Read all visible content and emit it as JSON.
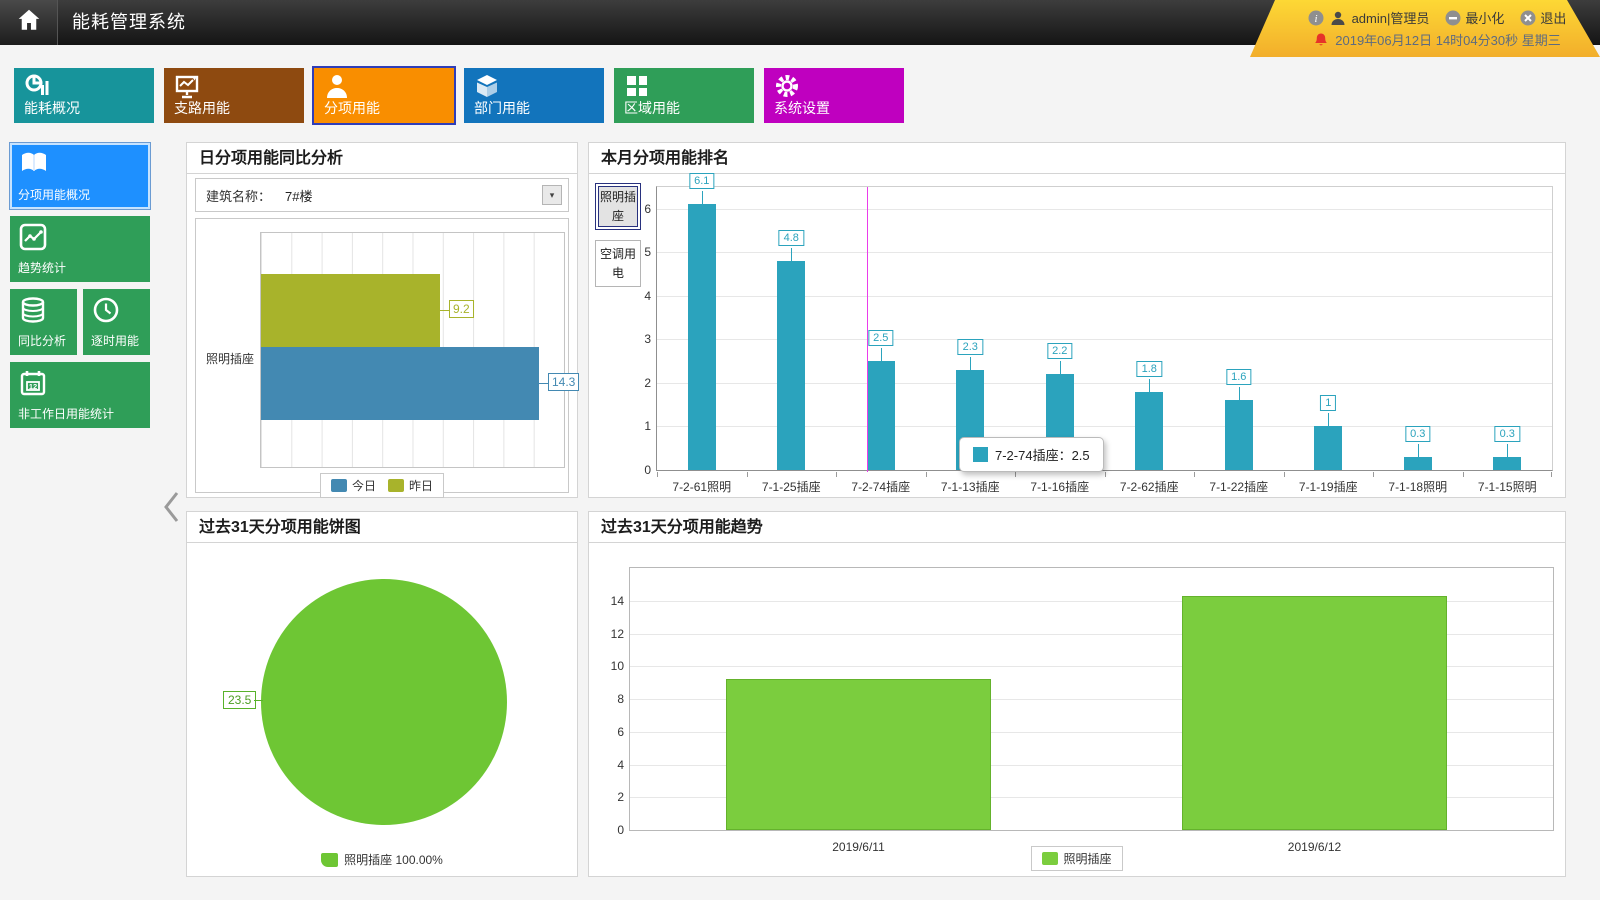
{
  "app": {
    "title": "能耗管理系统"
  },
  "header": {
    "user": "admin|管理员",
    "minimize_label": "最小化",
    "exit_label": "退出",
    "datetime": "2019年06月12日 14时04分30秒 星期三"
  },
  "icons": {
    "home": "home-icon",
    "info": "info-icon",
    "user": "user-icon",
    "minimize": "minimize-icon",
    "close": "close-icon",
    "bell": "bell-icon",
    "dropdown": "dropdown-arrow-icon",
    "collapse": "chevron-left-icon"
  },
  "nav": {
    "items": [
      {
        "label": "能耗概况",
        "icon": "energy-overview-icon",
        "color": "#17949b",
        "selected": false
      },
      {
        "label": "支路用能",
        "icon": "branch-energy-icon",
        "color": "#8e4a10",
        "selected": false
      },
      {
        "label": "分项用能",
        "icon": "category-energy-icon",
        "color": "#f98e00",
        "selected": true
      },
      {
        "label": "部门用能",
        "icon": "department-energy-icon",
        "color": "#1274bc",
        "selected": false
      },
      {
        "label": "区域用能",
        "icon": "area-energy-icon",
        "color": "#2f9e58",
        "selected": false
      },
      {
        "label": "系统设置",
        "icon": "system-settings-icon",
        "color": "#bf00bf",
        "selected": false
      }
    ]
  },
  "sidebar": {
    "items": [
      {
        "label": "分项用能概况",
        "icon": "overview-book-icon",
        "color": "#1e90ff",
        "selected": true
      },
      {
        "label": "趋势统计",
        "icon": "trend-chart-icon",
        "color": "#2f9e58",
        "selected": false
      },
      {
        "label": "同比分析",
        "icon": "database-icon",
        "color": "#2f9e58",
        "selected": false
      },
      {
        "label": "逐时用能",
        "icon": "clock-icon",
        "color": "#2f9e58",
        "selected": false
      },
      {
        "label": "非工作日用能统计",
        "icon": "calendar-icon",
        "color": "#2f9e58",
        "selected": false
      }
    ]
  },
  "panels": {
    "compare": {
      "title": "日分项用能同比分析",
      "building_label": "建筑名称：",
      "building_value": "7#楼"
    },
    "ranking": {
      "title": "本月分项用能排名",
      "tabs": [
        {
          "label": "照明插座",
          "selected": true
        },
        {
          "label": "空调用电",
          "selected": false
        }
      ],
      "tooltip": "7-2-74插座：2.5"
    },
    "pie": {
      "title": "过去31天分项用能饼图",
      "callout": "23.5",
      "legend": "照明插座 100.00%"
    },
    "trend": {
      "title": "过去31天分项用能趋势",
      "legend": "照明插座"
    }
  },
  "chart_data": {
    "daily_compare": {
      "type": "bar",
      "orientation": "horizontal",
      "categories": [
        "照明插座"
      ],
      "series": [
        {
          "name": "今日",
          "values": [
            14.3
          ],
          "color": "#4389b2"
        },
        {
          "name": "昨日",
          "values": [
            9.2
          ],
          "color": "#a8b32b"
        }
      ],
      "xlim": [
        0,
        15.6
      ],
      "grid": true,
      "legend_position": "bottom"
    },
    "monthly_ranking": {
      "type": "bar",
      "categories": [
        "7-2-61照明",
        "7-1-25插座",
        "7-2-74插座",
        "7-1-13插座",
        "7-1-16插座",
        "7-2-62插座",
        "7-1-22插座",
        "7-1-19插座",
        "7-1-18照明",
        "7-1-15照明"
      ],
      "values": [
        6.1,
        4.8,
        2.5,
        2.3,
        2.2,
        1.8,
        1.6,
        1,
        0.3,
        0.3
      ],
      "color": "#2ba3bd",
      "ylim": [
        0,
        6.5
      ],
      "yticks": [
        0,
        1,
        2,
        3,
        4,
        5,
        6
      ],
      "grid": true,
      "highlight_index": 2,
      "crosshair_color": "#ea3dea"
    },
    "pie_31d": {
      "type": "pie",
      "labels": [
        "照明插座"
      ],
      "values": [
        23.5
      ],
      "percents": [
        "100.00%"
      ],
      "color": "#6ec634",
      "legend_position": "bottom"
    },
    "trend_31d": {
      "type": "bar",
      "categories": [
        "2019/6/11",
        "2019/6/12"
      ],
      "series": [
        {
          "name": "照明插座",
          "values": [
            9.2,
            14.3
          ],
          "color": "#7bcd3e"
        }
      ],
      "ylim": [
        0,
        16
      ],
      "yticks": [
        0,
        2,
        4,
        6,
        8,
        10,
        12,
        14
      ],
      "grid": true,
      "legend_position": "bottom"
    }
  }
}
